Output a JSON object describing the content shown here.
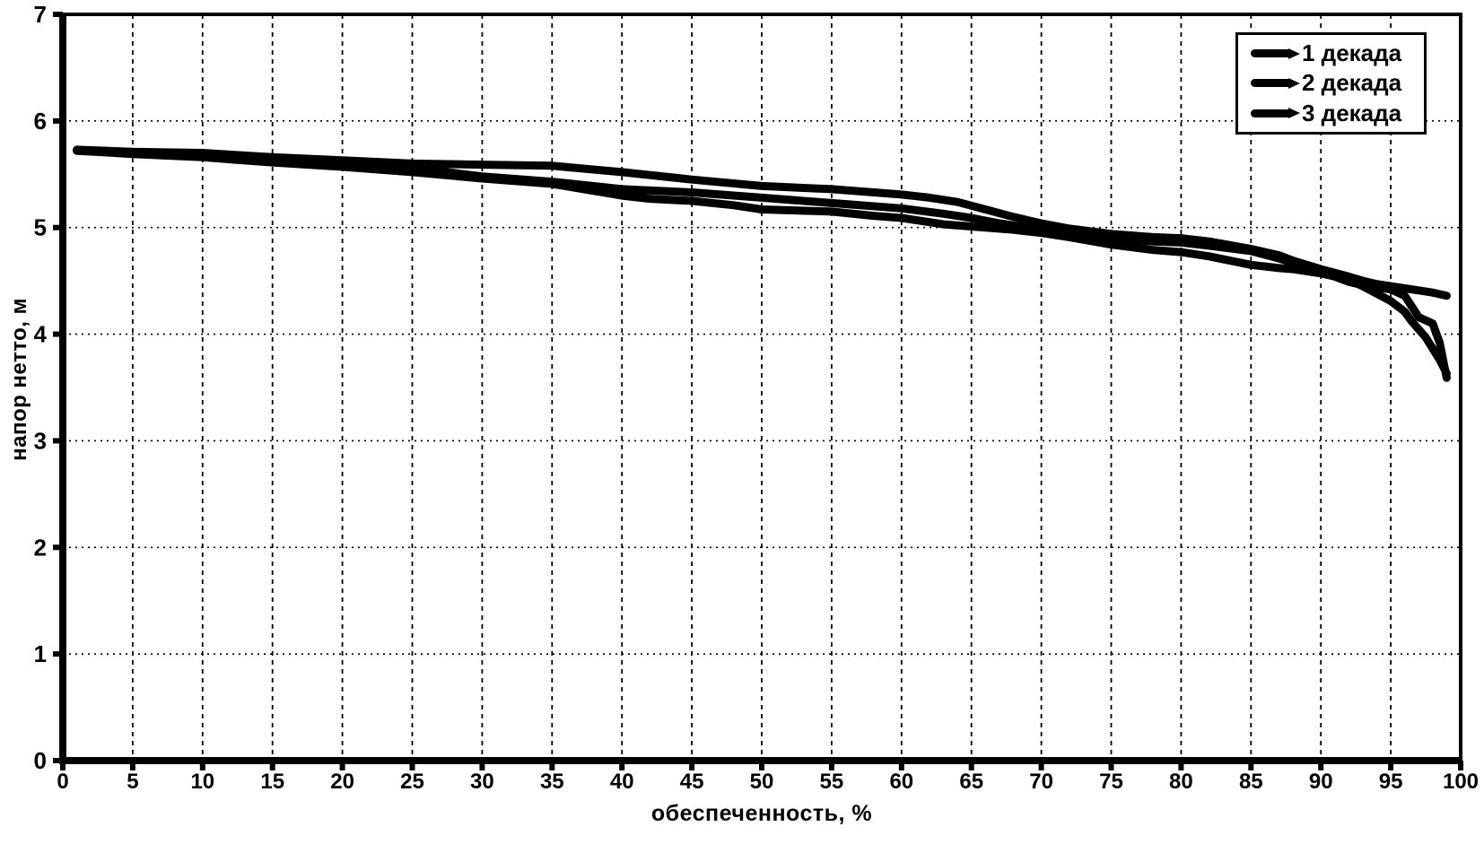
{
  "chart_data": {
    "type": "line",
    "title": "",
    "xlabel": "обеспеченность, %",
    "ylabel": "напор нетто, м",
    "xlim": [
      0,
      100
    ],
    "ylim": [
      0,
      7
    ],
    "x_ticks": [
      0,
      5,
      10,
      15,
      20,
      25,
      30,
      35,
      40,
      45,
      50,
      55,
      60,
      65,
      70,
      75,
      80,
      85,
      90,
      95,
      100
    ],
    "y_ticks": [
      0,
      1,
      2,
      3,
      4,
      5,
      6,
      7
    ],
    "grid": true,
    "legend_position": "top-right",
    "background_color": "#ffffff",
    "line_color": "#000000",
    "series": [
      {
        "name": "1 декада",
        "points": [
          [
            1,
            5.73
          ],
          [
            5,
            5.71
          ],
          [
            10,
            5.7
          ],
          [
            15,
            5.66
          ],
          [
            20,
            5.63
          ],
          [
            25,
            5.6
          ],
          [
            30,
            5.59
          ],
          [
            35,
            5.58
          ],
          [
            40,
            5.52
          ],
          [
            45,
            5.45
          ],
          [
            50,
            5.39
          ],
          [
            55,
            5.36
          ],
          [
            60,
            5.31
          ],
          [
            62,
            5.28
          ],
          [
            64,
            5.24
          ],
          [
            66,
            5.17
          ],
          [
            68,
            5.1
          ],
          [
            70,
            5.04
          ],
          [
            72,
            4.99
          ],
          [
            75,
            4.94
          ],
          [
            78,
            4.91
          ],
          [
            80,
            4.9
          ],
          [
            82,
            4.87
          ],
          [
            85,
            4.8
          ],
          [
            87,
            4.74
          ],
          [
            88,
            4.69
          ],
          [
            90,
            4.61
          ],
          [
            92,
            4.54
          ],
          [
            93,
            4.5
          ],
          [
            94,
            4.47
          ],
          [
            95,
            4.45
          ],
          [
            96,
            4.43
          ],
          [
            97,
            4.41
          ],
          [
            98,
            4.39
          ],
          [
            99,
            4.36
          ]
        ]
      },
      {
        "name": "2 декада",
        "points": [
          [
            1,
            5.72
          ],
          [
            5,
            5.7
          ],
          [
            10,
            5.68
          ],
          [
            15,
            5.64
          ],
          [
            20,
            5.6
          ],
          [
            25,
            5.56
          ],
          [
            30,
            5.48
          ],
          [
            35,
            5.43
          ],
          [
            40,
            5.36
          ],
          [
            45,
            5.33
          ],
          [
            50,
            5.28
          ],
          [
            55,
            5.23
          ],
          [
            60,
            5.18
          ],
          [
            63,
            5.13
          ],
          [
            65,
            5.09
          ],
          [
            67,
            5.04
          ],
          [
            70,
            4.98
          ],
          [
            72,
            4.95
          ],
          [
            75,
            4.9
          ],
          [
            78,
            4.87
          ],
          [
            80,
            4.86
          ],
          [
            82,
            4.83
          ],
          [
            85,
            4.78
          ],
          [
            87,
            4.71
          ],
          [
            88,
            4.67
          ],
          [
            90,
            4.6
          ],
          [
            91,
            4.56
          ],
          [
            92,
            4.51
          ],
          [
            93,
            4.45
          ],
          [
            94,
            4.38
          ],
          [
            95,
            4.31
          ],
          [
            96,
            4.21
          ],
          [
            96.5,
            4.12
          ],
          [
            97.5,
            3.97
          ],
          [
            98.5,
            3.76
          ],
          [
            99,
            3.63
          ]
        ]
      },
      {
        "name": "3 декада",
        "points": [
          [
            1,
            5.72
          ],
          [
            5,
            5.69
          ],
          [
            10,
            5.66
          ],
          [
            15,
            5.61
          ],
          [
            20,
            5.57
          ],
          [
            25,
            5.52
          ],
          [
            30,
            5.46
          ],
          [
            35,
            5.41
          ],
          [
            40,
            5.3
          ],
          [
            42,
            5.27
          ],
          [
            45,
            5.25
          ],
          [
            48,
            5.21
          ],
          [
            50,
            5.17
          ],
          [
            55,
            5.15
          ],
          [
            58,
            5.11
          ],
          [
            60,
            5.09
          ],
          [
            63,
            5.03
          ],
          [
            65,
            5.01
          ],
          [
            68,
            4.98
          ],
          [
            70,
            4.95
          ],
          [
            72,
            4.91
          ],
          [
            75,
            4.84
          ],
          [
            78,
            4.79
          ],
          [
            80,
            4.77
          ],
          [
            82,
            4.73
          ],
          [
            85,
            4.65
          ],
          [
            87,
            4.62
          ],
          [
            88,
            4.61
          ],
          [
            90,
            4.57
          ],
          [
            91,
            4.54
          ],
          [
            92,
            4.49
          ],
          [
            93,
            4.46
          ],
          [
            94,
            4.44
          ],
          [
            95,
            4.42
          ],
          [
            96,
            4.36
          ],
          [
            97,
            4.16
          ],
          [
            98,
            4.1
          ],
          [
            98.5,
            3.92
          ],
          [
            99,
            3.59
          ]
        ]
      }
    ]
  }
}
